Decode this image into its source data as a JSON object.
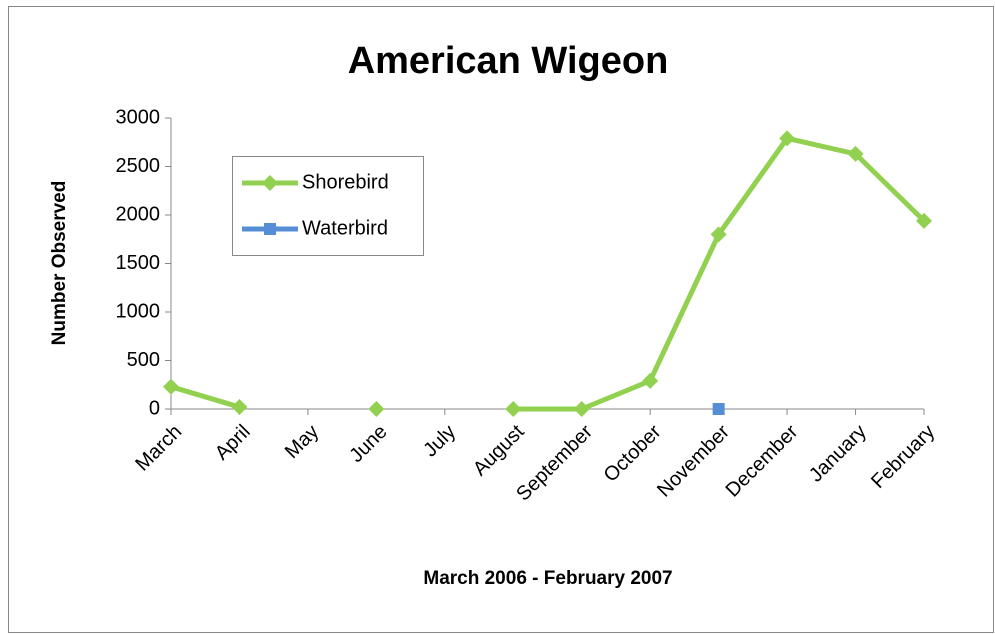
{
  "chart_data": {
    "type": "line",
    "title": "American Wigeon",
    "xlabel": "March 2006 - February 2007",
    "ylabel": "Number Observed",
    "categories": [
      "March",
      "April",
      "May",
      "June",
      "July",
      "August",
      "September",
      "October",
      "November",
      "December",
      "January",
      "February"
    ],
    "series": [
      {
        "name": "Shorebird",
        "color": "#92d050",
        "marker": "diamond",
        "values": [
          230,
          20,
          null,
          0,
          null,
          0,
          0,
          290,
          1800,
          2790,
          2630,
          1940
        ]
      },
      {
        "name": "Waterbird",
        "color": "#558ed5",
        "marker": "square",
        "values": [
          null,
          null,
          null,
          null,
          null,
          null,
          null,
          null,
          0,
          null,
          null,
          null
        ]
      }
    ],
    "ylim": [
      0,
      3000
    ],
    "yticks": [
      0,
      500,
      1000,
      1500,
      2000,
      2500,
      3000
    ],
    "grid": false
  }
}
